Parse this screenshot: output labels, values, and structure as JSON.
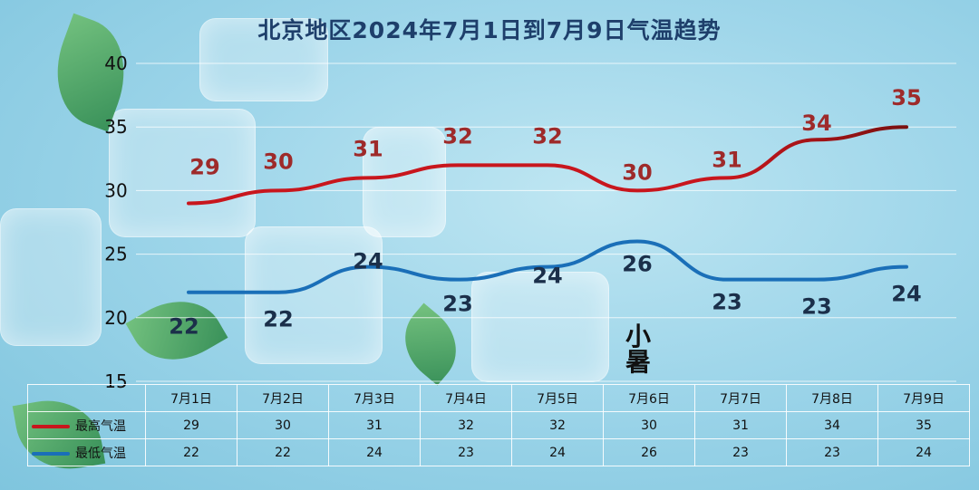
{
  "title": "北京地区2024年7月1日到7月9日气温趋势",
  "logo_text": "小暑",
  "colors": {
    "high": "#c8161d",
    "high_end": "#7a1010",
    "low": "#1a6fb8",
    "high_label": "#9e2a2a",
    "low_label": "#1b2f4a"
  },
  "chart_data": {
    "type": "line",
    "categories": [
      "7月1日",
      "7月2日",
      "7月3日",
      "7月4日",
      "7月5日",
      "7月6日",
      "7月7日",
      "7月8日",
      "7月9日"
    ],
    "series": [
      {
        "name": "最高气温",
        "values": [
          29,
          30,
          31,
          32,
          32,
          30,
          31,
          34,
          35
        ]
      },
      {
        "name": "最低气温",
        "values": [
          22,
          22,
          24,
          23,
          24,
          26,
          23,
          23,
          24
        ]
      }
    ],
    "y_ticks": [
      "15",
      "20",
      "25",
      "30",
      "35",
      "40"
    ],
    "ylim": [
      15,
      40
    ],
    "grid": true,
    "legend": "bottom-left table"
  }
}
